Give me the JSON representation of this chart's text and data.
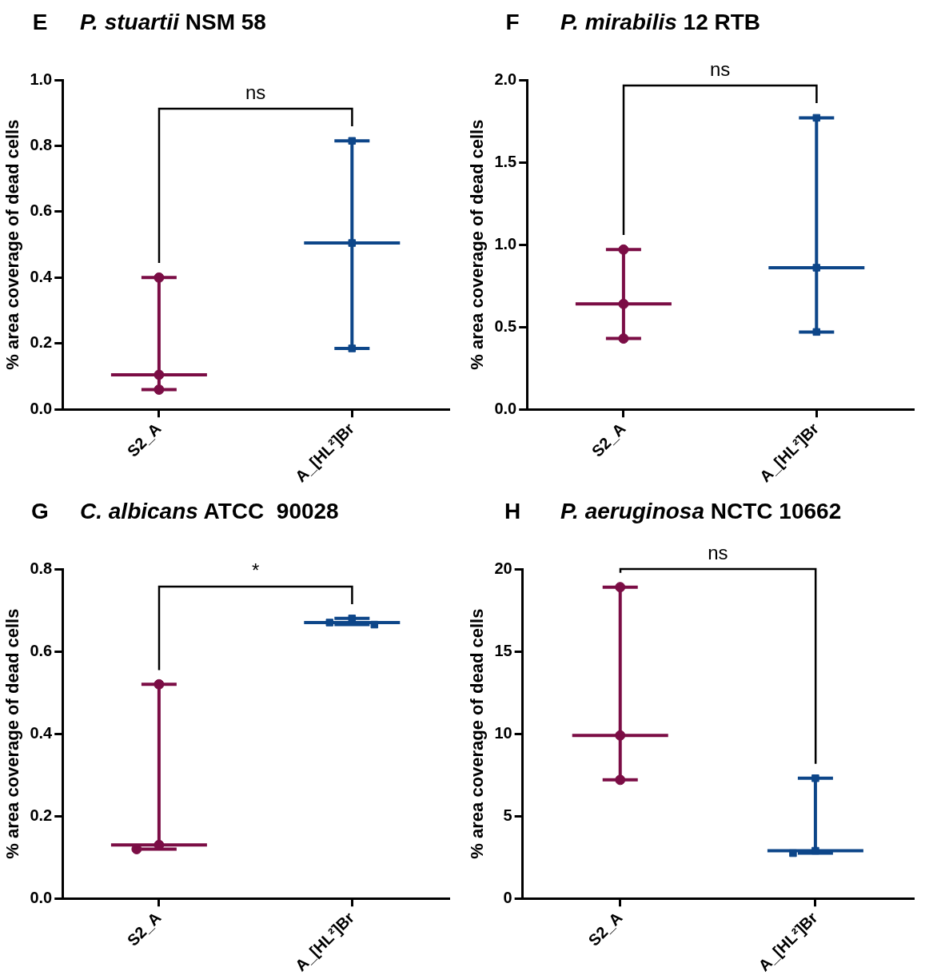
{
  "chart_data": [
    {
      "type": "box",
      "title": "P. stuartii NSM 58",
      "ylabel": "% area coverage of dead cells",
      "annotations": [
        "E",
        "ns"
      ],
      "categories": [
        "S2_A",
        "A_[HL²]Br"
      ],
      "ylim": [
        0,
        1
      ],
      "yticks": [
        {
          "value": 0,
          "label": "0.0"
        },
        0.2,
        0.4,
        0.6,
        0.8,
        {
          "value": 1,
          "label": "1.0"
        }
      ],
      "colors": [
        "#7b0d45",
        "#0d4689"
      ],
      "boxes": [
        {
          "low": 0.06,
          "q1": 0.105,
          "median": 0.105,
          "q3": 0.105,
          "high": 0.4
        },
        {
          "low": 0.185,
          "q1": 0.505,
          "median": 0.505,
          "q3": 0.505,
          "high": 0.815
        }
      ],
      "series": [
        {
          "type": "scatter",
          "color": "#7b0d45",
          "marker": "circle",
          "x": [
            "S2_A",
            "S2_A",
            "S2_A"
          ],
          "values": [
            0.4,
            0.105,
            0.06
          ]
        },
        {
          "type": "scatter",
          "color": "#0d4689",
          "marker": "square",
          "x": [
            "A_[HL²]Br",
            "A_[HL²]Br",
            "A_[HL²]Br"
          ],
          "values": [
            0.815,
            0.505,
            0.185
          ]
        }
      ]
    },
    {
      "type": "box",
      "title": "P. mirabilis 12 RTB",
      "ylabel": "% area coverage of dead cells",
      "annotations": [
        "F",
        "ns"
      ],
      "categories": [
        "S2_A",
        "A_[HL²]Br"
      ],
      "ylim": [
        0,
        2
      ],
      "yticks": [
        {
          "value": 0,
          "label": "0.0"
        },
        0.5,
        {
          "value": 1,
          "label": "1.0"
        },
        1.5,
        {
          "value": 2,
          "label": "2.0"
        }
      ],
      "colors": [
        "#7b0d45",
        "#0d4689"
      ],
      "boxes": [
        {
          "low": 0.43,
          "q1": 0.64,
          "median": 0.64,
          "q3": 0.64,
          "high": 0.97
        },
        {
          "low": 0.47,
          "q1": 0.86,
          "median": 0.86,
          "q3": 0.86,
          "high": 1.77
        }
      ],
      "series": [
        {
          "type": "scatter",
          "color": "#7b0d45",
          "marker": "circle",
          "x": [
            "S2_A",
            "S2_A",
            "S2_A"
          ],
          "values": [
            0.97,
            0.64,
            0.43
          ]
        },
        {
          "type": "scatter",
          "color": "#0d4689",
          "marker": "square",
          "x": [
            "A_[HL²]Br",
            "A_[HL²]Br",
            "A_[HL²]Br"
          ],
          "values": [
            1.77,
            0.86,
            0.47
          ]
        }
      ]
    },
    {
      "type": "box",
      "title": "C. albicans ATCC  90028",
      "ylabel": "% area coverage of dead cells",
      "annotations": [
        "G",
        "*"
      ],
      "categories": [
        "S2_A",
        "A_[HL²]Br"
      ],
      "ylim": [
        0,
        0.8
      ],
      "yticks": [
        {
          "value": 0,
          "label": "0.0"
        },
        0.2,
        0.4,
        0.6,
        0.8
      ],
      "colors": [
        "#7b0d45",
        "#0d4689"
      ],
      "boxes": [
        {
          "low": 0.12,
          "q1": 0.13,
          "median": 0.13,
          "q3": 0.13,
          "high": 0.52
        },
        {
          "low": 0.665,
          "q1": 0.67,
          "median": 0.67,
          "q3": 0.67,
          "high": 0.68
        }
      ],
      "series": [
        {
          "type": "scatter",
          "color": "#7b0d45",
          "marker": "circle",
          "x": [
            "S2_A",
            "S2_A",
            "S2_A"
          ],
          "values": [
            0.52,
            0.13,
            0.12
          ]
        },
        {
          "type": "scatter",
          "color": "#0d4689",
          "marker": "square",
          "x": [
            "A_[HL²]Br",
            "A_[HL²]Br",
            "A_[HL²]Br"
          ],
          "values": [
            0.68,
            0.67,
            0.665
          ]
        }
      ]
    },
    {
      "type": "box",
      "title": "P. aeruginosa NCTC 10662",
      "ylabel": "% area coverage of dead cells",
      "annotations": [
        "H",
        "ns"
      ],
      "categories": [
        "S2_A",
        "A_[HL²]Br"
      ],
      "ylim": [
        0,
        20
      ],
      "yticks": [
        0,
        5,
        10,
        15,
        20
      ],
      "colors": [
        "#7b0d45",
        "#0d4689"
      ],
      "boxes": [
        {
          "low": 7.2,
          "q1": 9.9,
          "median": 9.9,
          "q3": 9.9,
          "high": 18.9
        },
        {
          "low": 2.75,
          "q1": 2.9,
          "median": 2.9,
          "q3": 2.9,
          "high": 7.3
        }
      ],
      "series": [
        {
          "type": "scatter",
          "color": "#7b0d45",
          "marker": "circle",
          "x": [
            "S2_A",
            "S2_A",
            "S2_A"
          ],
          "values": [
            18.9,
            9.9,
            7.2
          ]
        },
        {
          "type": "scatter",
          "color": "#0d4689",
          "marker": "square",
          "x": [
            "A_[HL²]Br",
            "A_[HL²]Br",
            "A_[HL²]Br"
          ],
          "values": [
            7.3,
            2.9,
            2.75
          ]
        }
      ]
    }
  ]
}
